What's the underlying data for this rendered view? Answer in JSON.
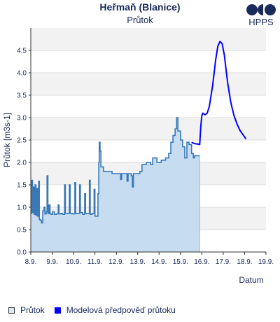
{
  "header": {
    "title": "Heřmaň (Blanice)",
    "subtitle": "Průtok",
    "logo_text": "HPPS"
  },
  "chart_data": {
    "type": "line",
    "ylabel": "Průtok [m3s-1]",
    "xlabel": "Datum",
    "ylim": [
      0,
      5
    ],
    "xlim": [
      8.9,
      19.9
    ],
    "x_ticks": [
      {
        "label": "8.9.",
        "value": 8.9
      },
      {
        "label": "9.9.",
        "value": 9.9
      },
      {
        "label": "10.9.",
        "value": 10.9
      },
      {
        "label": "11.9.",
        "value": 11.9
      },
      {
        "label": "12.9.",
        "value": 12.9
      },
      {
        "label": "13.9.",
        "value": 13.9
      },
      {
        "label": "14.9.",
        "value": 14.9
      },
      {
        "label": "15.9.",
        "value": 15.9
      },
      {
        "label": "16.9.",
        "value": 16.9
      },
      {
        "label": "17.9.",
        "value": 17.9
      },
      {
        "label": "18.9.",
        "value": 18.9
      },
      {
        "label": "19.9.",
        "value": 19.9
      }
    ],
    "y_ticks": [
      "0.0",
      "0.5",
      "1.0",
      "1.5",
      "2.0",
      "2.5",
      "3.0",
      "3.5",
      "4.0",
      "4.5"
    ],
    "y_tick_values": [
      0,
      0.5,
      1.0,
      1.5,
      2.0,
      2.5,
      3.0,
      3.5,
      4.0,
      4.5
    ],
    "grid": true,
    "legend_position": "bottom",
    "series": [
      {
        "name": "Průtok",
        "style": "step-area",
        "color": "#3a78b8",
        "fill": "#c6dcf0",
        "points": [
          [
            8.9,
            0.86
          ],
          [
            8.94,
            1.6
          ],
          [
            8.98,
            0.88
          ],
          [
            9.02,
            1.45
          ],
          [
            9.06,
            0.84
          ],
          [
            9.1,
            1.5
          ],
          [
            9.14,
            0.82
          ],
          [
            9.18,
            1.42
          ],
          [
            9.22,
            0.8
          ],
          [
            9.27,
            1.58
          ],
          [
            9.3,
            0.72
          ],
          [
            9.36,
            0.7
          ],
          [
            9.4,
            0.65
          ],
          [
            9.46,
            0.92
          ],
          [
            9.52,
            1.0
          ],
          [
            9.56,
            0.85
          ],
          [
            9.62,
            0.9
          ],
          [
            9.66,
            1.7
          ],
          [
            9.7,
            0.86
          ],
          [
            9.75,
            1.05
          ],
          [
            9.8,
            0.85
          ],
          [
            9.86,
            0.84
          ],
          [
            9.92,
            0.9
          ],
          [
            10.0,
            0.84
          ],
          [
            10.1,
            0.85
          ],
          [
            10.18,
            1.05
          ],
          [
            10.22,
            0.85
          ],
          [
            10.3,
            0.86
          ],
          [
            10.38,
            0.84
          ],
          [
            10.48,
            1.5
          ],
          [
            10.52,
            0.86
          ],
          [
            10.62,
            0.86
          ],
          [
            10.7,
            1.5
          ],
          [
            10.74,
            0.86
          ],
          [
            10.84,
            0.85
          ],
          [
            10.96,
            1.55
          ],
          [
            11.0,
            0.86
          ],
          [
            11.08,
            0.86
          ],
          [
            11.18,
            1.5
          ],
          [
            11.22,
            0.88
          ],
          [
            11.32,
            0.84
          ],
          [
            11.42,
            1.3
          ],
          [
            11.46,
            0.86
          ],
          [
            11.56,
            0.86
          ],
          [
            11.64,
            1.6
          ],
          [
            11.68,
            0.84
          ],
          [
            11.76,
            0.86
          ],
          [
            11.86,
            1.4
          ],
          [
            11.9,
            0.8
          ],
          [
            12.0,
            0.8
          ],
          [
            12.04,
            1.3
          ],
          [
            12.08,
            2.0
          ],
          [
            12.1,
            2.45
          ],
          [
            12.14,
            2.25
          ],
          [
            12.18,
            1.9
          ],
          [
            12.3,
            1.8
          ],
          [
            12.5,
            1.8
          ],
          [
            12.7,
            1.75
          ],
          [
            12.9,
            1.75
          ],
          [
            13.05,
            1.75
          ],
          [
            13.1,
            1.62
          ],
          [
            13.15,
            1.75
          ],
          [
            13.3,
            1.75
          ],
          [
            13.4,
            1.58
          ],
          [
            13.45,
            1.75
          ],
          [
            13.6,
            1.7
          ],
          [
            13.65,
            1.45
          ],
          [
            13.7,
            1.75
          ],
          [
            13.85,
            1.75
          ],
          [
            14.0,
            1.8
          ],
          [
            14.1,
            1.95
          ],
          [
            14.3,
            2.0
          ],
          [
            14.5,
            1.95
          ],
          [
            14.6,
            2.1
          ],
          [
            14.7,
            2.1
          ],
          [
            14.8,
            2.0
          ],
          [
            15.0,
            2.05
          ],
          [
            15.2,
            2.1
          ],
          [
            15.35,
            2.2
          ],
          [
            15.45,
            2.45
          ],
          [
            15.55,
            2.6
          ],
          [
            15.65,
            2.75
          ],
          [
            15.72,
            3.0
          ],
          [
            15.78,
            2.7
          ],
          [
            15.9,
            2.5
          ],
          [
            16.0,
            2.35
          ],
          [
            16.1,
            2.1
          ],
          [
            16.2,
            2.45
          ],
          [
            16.3,
            2.4
          ],
          [
            16.42,
            2.2
          ],
          [
            16.5,
            2.1
          ],
          [
            16.56,
            2.15
          ],
          [
            16.7,
            2.15
          ],
          [
            16.8,
            2.15
          ]
        ]
      },
      {
        "name": "Modelová předpověď průtoku",
        "style": "line",
        "color": "#0000ff",
        "points": [
          [
            16.42,
            2.45
          ],
          [
            16.55,
            2.42
          ],
          [
            16.7,
            2.41
          ],
          [
            16.8,
            2.4
          ],
          [
            16.85,
            2.8
          ],
          [
            16.9,
            3.05
          ],
          [
            16.95,
            3.1
          ],
          [
            17.05,
            3.06
          ],
          [
            17.15,
            3.1
          ],
          [
            17.25,
            3.25
          ],
          [
            17.4,
            3.7
          ],
          [
            17.55,
            4.3
          ],
          [
            17.65,
            4.6
          ],
          [
            17.75,
            4.7
          ],
          [
            17.85,
            4.65
          ],
          [
            17.95,
            4.4
          ],
          [
            18.1,
            3.8
          ],
          [
            18.25,
            3.35
          ],
          [
            18.4,
            3.05
          ],
          [
            18.55,
            2.85
          ],
          [
            18.7,
            2.7
          ],
          [
            18.85,
            2.6
          ],
          [
            18.97,
            2.52
          ]
        ]
      }
    ]
  }
}
